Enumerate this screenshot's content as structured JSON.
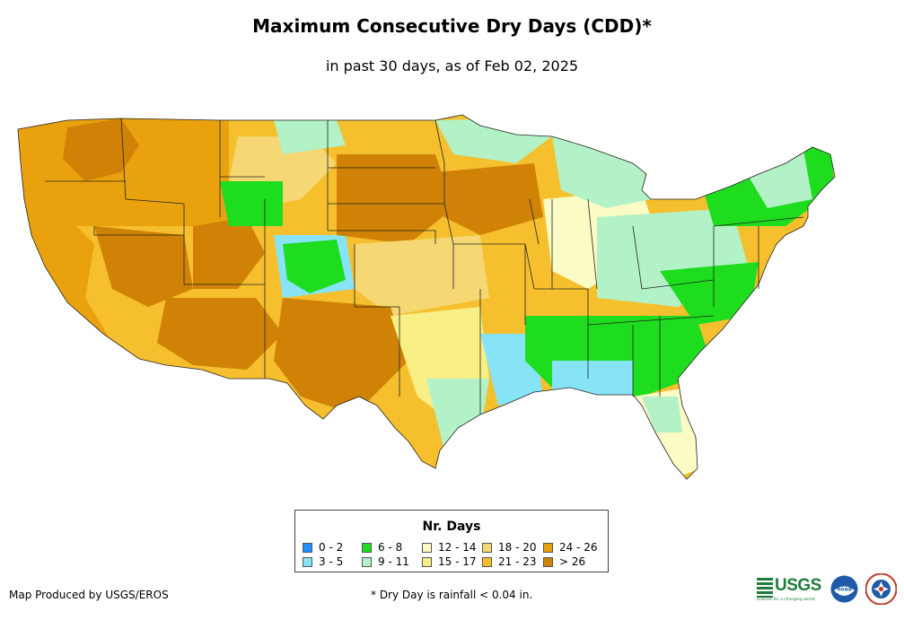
{
  "title": "Maximum Consecutive Dry Days (CDD)*",
  "subtitle": "in past 30 days, as of Feb 02, 2025",
  "legend": {
    "title": "Nr. Days",
    "items": [
      {
        "label": "0 - 2",
        "color": "#1e90ff"
      },
      {
        "label": "3 - 5",
        "color": "#87e4f7"
      },
      {
        "label": "6 - 8",
        "color": "#1edc1e"
      },
      {
        "label": "9 - 11",
        "color": "#b2f2c6"
      },
      {
        "label": "12 - 14",
        "color": "#fbfbc6"
      },
      {
        "label": "15 - 17",
        "color": "#f8ef86"
      },
      {
        "label": "18 - 20",
        "color": "#f5d873"
      },
      {
        "label": "21 - 23",
        "color": "#f5bf2d"
      },
      {
        "label": "24 - 26",
        "color": "#e9a20e"
      },
      {
        "label": "> 26",
        "color": "#cf8206"
      }
    ]
  },
  "footer": {
    "produced_by": "Map Produced by USGS/EROS",
    "footnote": "* Dry Day is rainfall < 0.04 in."
  },
  "logos": {
    "usgs_text": "USGS",
    "usgs_tagline": "science for a changing world",
    "usgs_color": "#1e7d3c",
    "noaa_text": "noaa",
    "noaa_color": "#1e5aa8"
  },
  "map_regions": [
    {
      "region": "Pacific Northwest",
      "category": "> 26"
    },
    {
      "region": "California",
      "category": "24 - 26"
    },
    {
      "region": "Great Basin",
      "category": "> 26"
    },
    {
      "region": "Southwest",
      "category": "> 26"
    },
    {
      "region": "Colorado Rockies",
      "category": "6 - 8"
    },
    {
      "region": "Northern Plains",
      "category": "21 - 23"
    },
    {
      "region": "Central Plains",
      "category": "> 26"
    },
    {
      "region": "Texas",
      "category": "18 - 20"
    },
    {
      "region": "Gulf Coast",
      "category": "3 - 5"
    },
    {
      "region": "Southeast",
      "category": "6 - 8"
    },
    {
      "region": "Ohio Valley",
      "category": "9 - 11"
    },
    {
      "region": "Great Lakes",
      "category": "6 - 8"
    },
    {
      "region": "Northeast",
      "category": "6 - 8"
    },
    {
      "region": "Florida",
      "category": "12 - 14"
    }
  ]
}
